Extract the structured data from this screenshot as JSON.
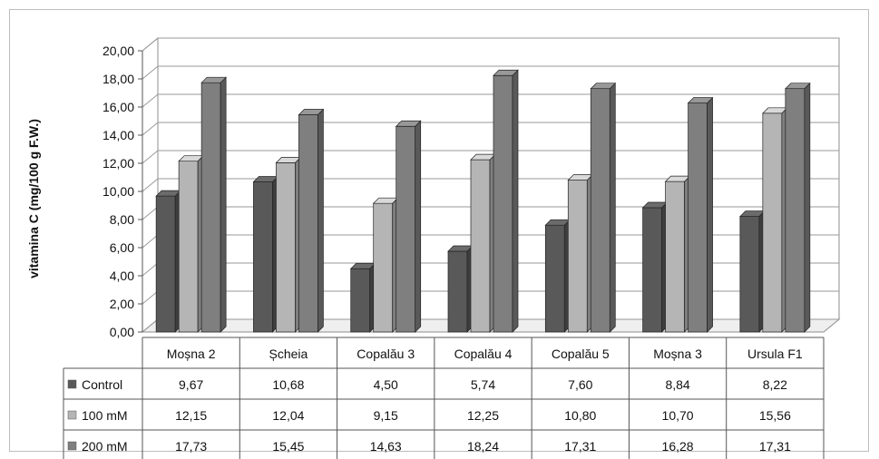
{
  "chart_data": {
    "type": "bar",
    "ylabel": "vitamina C (mg/100 g F.W.)",
    "ylim": [
      0,
      20
    ],
    "ytick_labels": [
      "0,00",
      "2,00",
      "4,00",
      "6,00",
      "8,00",
      "10,00",
      "12,00",
      "14,00",
      "16,00",
      "18,00",
      "20,00"
    ],
    "categories": [
      "Moșna 2",
      "Șcheia",
      "Copalău 3",
      "Copalău 4",
      "Copalău 5",
      "Moșna 3",
      "Ursula F1"
    ],
    "series": [
      {
        "name": "Control",
        "color": "#595959",
        "values": [
          9.67,
          10.68,
          4.5,
          5.74,
          7.6,
          8.84,
          8.22
        ],
        "labels": [
          "9,67",
          "10,68",
          "4,50",
          "5,74",
          "7,60",
          "8,84",
          "8,22"
        ]
      },
      {
        "name": "100 mM",
        "color": "#b5b5b5",
        "values": [
          12.15,
          12.04,
          9.15,
          12.25,
          10.8,
          10.7,
          15.56
        ],
        "labels": [
          "12,15",
          "12,04",
          "9,15",
          "12,25",
          "10,80",
          "10,70",
          "15,56"
        ]
      },
      {
        "name": "200 mM",
        "color": "#7f7f7f",
        "values": [
          17.73,
          15.45,
          14.63,
          18.24,
          17.31,
          16.28,
          17.31
        ],
        "labels": [
          "17,73",
          "15,45",
          "14,63",
          "18,24",
          "17,31",
          "16,28",
          "17,31"
        ]
      }
    ],
    "grid": true,
    "legend": "data-table"
  }
}
